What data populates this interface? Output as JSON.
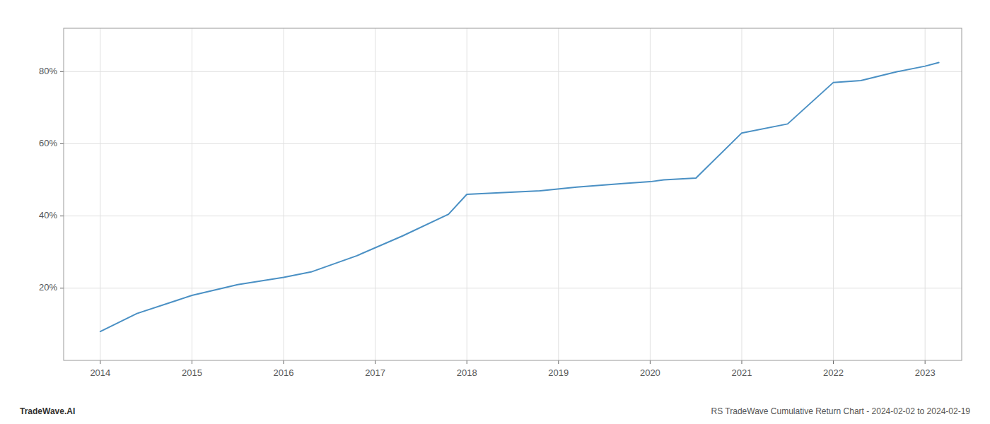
{
  "chart_data": {
    "type": "line",
    "x": [
      2014.0,
      2014.4,
      2015.0,
      2015.5,
      2016.0,
      2016.3,
      2016.8,
      2017.3,
      2017.8,
      2018.0,
      2018.4,
      2018.8,
      2019.2,
      2019.7,
      2020.0,
      2020.15,
      2020.5,
      2021.0,
      2021.5,
      2022.0,
      2022.3,
      2022.7,
      2023.0,
      2023.15
    ],
    "values": [
      0.08,
      0.13,
      0.18,
      0.21,
      0.23,
      0.245,
      0.29,
      0.345,
      0.405,
      0.46,
      0.465,
      0.47,
      0.48,
      0.49,
      0.495,
      0.5,
      0.505,
      0.63,
      0.655,
      0.77,
      0.775,
      0.8,
      0.815,
      0.825
    ],
    "color": "#4a90c4",
    "xlim": [
      2013.6,
      2023.4
    ],
    "ylim": [
      0.0,
      0.92
    ],
    "xticks": [
      2014,
      2015,
      2016,
      2017,
      2018,
      2019,
      2020,
      2021,
      2022,
      2023
    ],
    "yticks": [
      {
        "value": 0.2,
        "label": "20%"
      },
      {
        "value": 0.4,
        "label": "40%"
      },
      {
        "value": 0.6,
        "label": "60%"
      },
      {
        "value": 0.8,
        "label": "80%"
      }
    ],
    "grid": true,
    "annotations": [
      "TradeWave.AI",
      "RS TradeWave Cumulative Return Chart - 2024-02-02 to 2024-02-19"
    ]
  }
}
